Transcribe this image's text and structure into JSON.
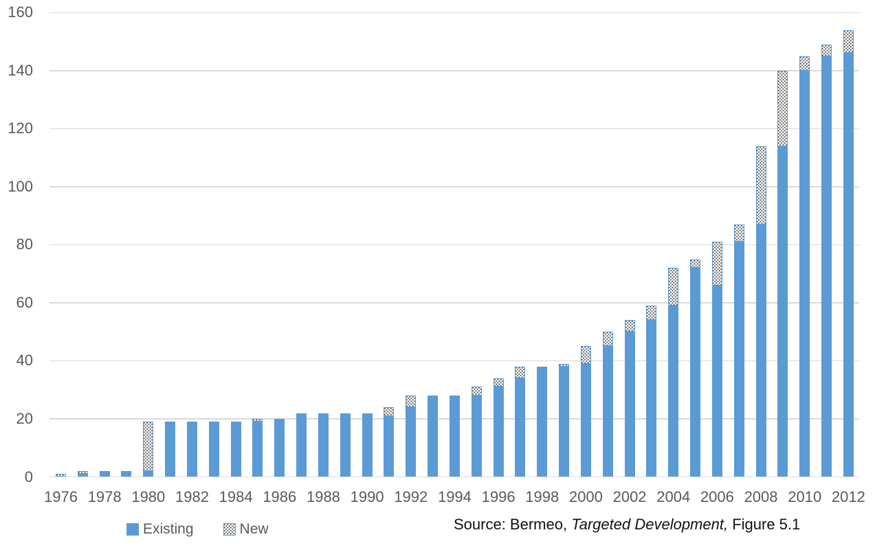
{
  "chart_data": {
    "type": "bar",
    "stacked": true,
    "title": "",
    "xlabel": "",
    "ylabel": "",
    "x": [
      1976,
      1977,
      1978,
      1979,
      1980,
      1981,
      1982,
      1983,
      1984,
      1985,
      1986,
      1987,
      1988,
      1989,
      1990,
      1991,
      1992,
      1993,
      1994,
      1995,
      1996,
      1997,
      1998,
      1999,
      2000,
      2001,
      2002,
      2003,
      2004,
      2005,
      2006,
      2007,
      2008,
      2009,
      2010,
      2011,
      2012
    ],
    "series": [
      {
        "name": "Existing",
        "values": [
          0,
          1,
          2,
          2,
          2,
          19,
          19,
          19,
          19,
          19,
          20,
          22,
          22,
          22,
          22,
          21,
          24,
          28,
          28,
          28,
          31,
          34,
          38,
          38,
          39,
          45,
          50,
          54,
          59,
          72,
          66,
          81,
          87,
          114,
          140,
          145,
          146
        ]
      },
      {
        "name": "New",
        "values": [
          1,
          1,
          0,
          0,
          17,
          0,
          0,
          0,
          0,
          1,
          0,
          0,
          0,
          0,
          0,
          3,
          4,
          0,
          0,
          3,
          3,
          4,
          0,
          1,
          6,
          5,
          4,
          5,
          13,
          3,
          15,
          6,
          27,
          26,
          5,
          4,
          8
        ]
      }
    ],
    "totals": [
      1,
      2,
      2,
      2,
      19,
      19,
      19,
      19,
      19,
      20,
      20,
      22,
      22,
      22,
      22,
      24,
      28,
      28,
      28,
      31,
      34,
      38,
      38,
      39,
      45,
      50,
      54,
      59,
      72,
      75,
      81,
      87,
      114,
      140,
      145,
      149,
      154
    ],
    "ylim": [
      0,
      160
    ],
    "yticks": [
      0,
      20,
      40,
      60,
      80,
      100,
      120,
      140,
      160
    ],
    "xtick_labels": [
      "1976",
      "1978",
      "1980",
      "1982",
      "1984",
      "1986",
      "1988",
      "1990",
      "1992",
      "1994",
      "1996",
      "1998",
      "2000",
      "2002",
      "2004",
      "2006",
      "2008",
      "2010",
      "2012"
    ],
    "grid": true,
    "legend_position": "bottom-left",
    "colors": {
      "existing_fill": "#5b9bd5",
      "new_fill": "#ffffff",
      "new_border": "#5b9bd5",
      "new_dots": "#3f3f3f",
      "gridline": "#d9d9d9",
      "axis_text": "#595959",
      "source_text": "#111111"
    }
  },
  "source": {
    "prefix": "Source: Bermeo, ",
    "book_title": "Targeted Development,",
    "suffix": " Figure 5.1"
  }
}
